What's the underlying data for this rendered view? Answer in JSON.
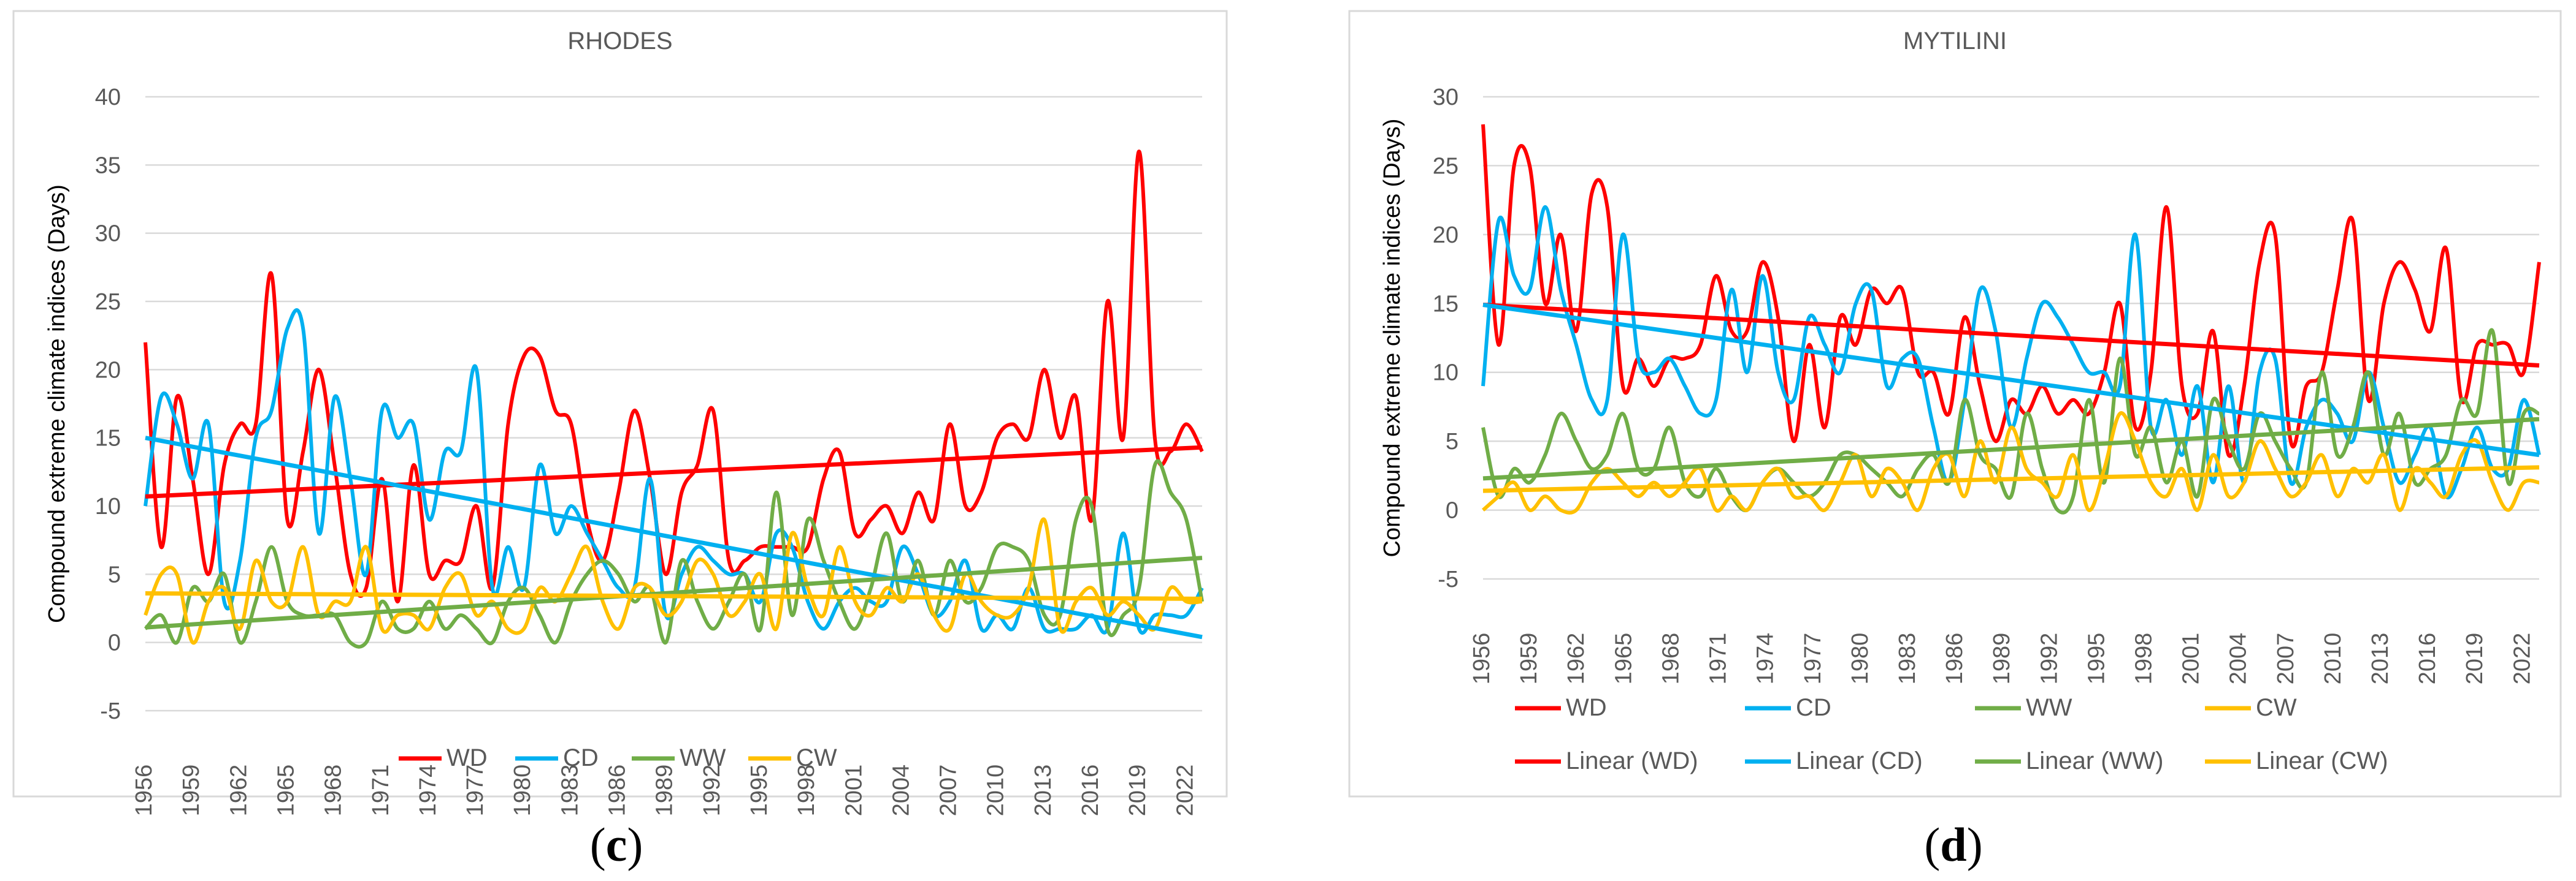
{
  "chart_data": [
    {
      "type": "line",
      "title": "RHODES",
      "caption_prefix": "(",
      "caption": "c",
      "caption_suffix": ")",
      "ylabel": "Compound extreme climate indices (Days)",
      "xlabel": "",
      "ylim": [
        -5,
        40
      ],
      "yticks": [
        -5,
        0,
        5,
        10,
        15,
        20,
        25,
        30,
        35,
        40
      ],
      "xlim": [
        1956,
        2023
      ],
      "xticks": [
        1956,
        1959,
        1962,
        1965,
        1968,
        1971,
        1974,
        1977,
        1980,
        1983,
        1986,
        1989,
        1992,
        1995,
        1998,
        2001,
        2004,
        2007,
        2010,
        2013,
        2016,
        2019,
        2022
      ],
      "series": [
        {
          "name": "WD",
          "color": "#ff0000",
          "values": [
            22,
            7,
            18,
            12,
            5,
            13,
            16,
            16,
            27,
            9,
            14,
            20,
            13,
            5,
            4,
            12,
            3,
            13,
            5,
            6,
            6,
            10,
            4,
            16,
            21,
            21,
            17,
            16,
            9,
            6,
            11,
            17,
            12,
            5,
            11,
            13,
            17,
            6,
            6,
            7,
            7,
            7,
            7,
            12,
            14,
            8,
            9,
            10,
            8,
            11,
            9,
            16,
            10,
            11,
            15,
            16,
            15,
            20,
            15,
            18,
            9,
            25,
            15,
            36,
            15,
            14,
            16,
            14
          ]
        },
        {
          "name": "CD",
          "color": "#00b0f0",
          "values": [
            10,
            18,
            16,
            12,
            16,
            3,
            6,
            15,
            17,
            23,
            23,
            8,
            18,
            12,
            5,
            17,
            15,
            16,
            9,
            14,
            14,
            20,
            4,
            7,
            4,
            13,
            8,
            10,
            8,
            6,
            4,
            4,
            12,
            2,
            5,
            7,
            6,
            5,
            5,
            3,
            8,
            7,
            3,
            1,
            3,
            4,
            3,
            3,
            7,
            5,
            2,
            3,
            6,
            1,
            2,
            1,
            4,
            1,
            1,
            1,
            2,
            1,
            8,
            1,
            2,
            2,
            2,
            4
          ]
        },
        {
          "name": "WW",
          "color": "#70ad47",
          "values": [
            1,
            2,
            0,
            4,
            3,
            5,
            0,
            3,
            7,
            3,
            2,
            2,
            2,
            0,
            0,
            3,
            1,
            1,
            3,
            1,
            2,
            1,
            0,
            3,
            4,
            2,
            0,
            3,
            5,
            6,
            5,
            3,
            4,
            0,
            6,
            3,
            1,
            3,
            5,
            1,
            11,
            2,
            9,
            6,
            3,
            1,
            4,
            8,
            3,
            6,
            2,
            6,
            3,
            4,
            7,
            7,
            6,
            2,
            2,
            9,
            10,
            1,
            2,
            4,
            13,
            11,
            9,
            3
          ]
        },
        {
          "name": "CW",
          "color": "#ffc000",
          "values": [
            2,
            5,
            5,
            0,
            3,
            4,
            1,
            6,
            3,
            3,
            7,
            2,
            3,
            3,
            7,
            1,
            2,
            2,
            1,
            4,
            5,
            2,
            3,
            1,
            1,
            4,
            3,
            5,
            7,
            3,
            1,
            4,
            4,
            2,
            3,
            6,
            5,
            2,
            3,
            5,
            1,
            8,
            4,
            2,
            7,
            3,
            2,
            4,
            3,
            5,
            2,
            1,
            5,
            3,
            2,
            2,
            4,
            9,
            1,
            3,
            4,
            2,
            3,
            2,
            1,
            4,
            3,
            3
          ]
        },
        {
          "name": "Linear (WD)",
          "color": "#ff0000",
          "trend": [
            10.7,
            14.3
          ],
          "show_in_legend": false
        },
        {
          "name": "Linear (CD)",
          "color": "#00b0f0",
          "trend": [
            15.0,
            0.4
          ],
          "show_in_legend": false
        },
        {
          "name": "Linear (WW)",
          "color": "#70ad47",
          "trend": [
            1.1,
            6.2
          ],
          "show_in_legend": false
        },
        {
          "name": "Linear (CW)",
          "color": "#ffc000",
          "trend": [
            3.6,
            3.2
          ],
          "show_in_legend": false
        }
      ],
      "legend": "bottom"
    },
    {
      "type": "line",
      "title": "MYTILINI",
      "caption_prefix": "(",
      "caption": "d",
      "caption_suffix": ")",
      "ylabel": "Compound extreme climate indices (Days)",
      "xlabel": "",
      "ylim": [
        -5,
        30
      ],
      "yticks": [
        -5,
        0,
        5,
        10,
        15,
        20,
        25,
        30
      ],
      "xlim": [
        1956,
        2023
      ],
      "xticks": [
        1956,
        1959,
        1962,
        1965,
        1968,
        1971,
        1974,
        1977,
        1980,
        1983,
        1986,
        1989,
        1992,
        1995,
        1998,
        2001,
        2004,
        2007,
        2010,
        2013,
        2016,
        2019,
        2022
      ],
      "series": [
        {
          "name": "WD",
          "color": "#ff0000",
          "values": [
            28,
            12,
            25,
            25,
            15,
            20,
            13,
            23,
            22,
            9,
            11,
            9,
            11,
            11,
            12,
            17,
            13,
            13,
            18,
            14,
            5,
            12,
            6,
            14,
            12,
            16,
            15,
            16,
            10,
            10,
            7,
            14,
            9,
            5,
            8,
            7,
            9,
            7,
            8,
            7,
            10,
            15,
            6,
            10,
            22,
            9,
            7,
            13,
            4,
            9,
            18,
            20,
            5,
            9,
            10,
            16,
            21,
            8,
            15,
            18,
            16,
            13,
            19,
            8,
            12,
            12,
            12,
            10,
            18
          ]
        },
        {
          "name": "CD",
          "color": "#00b0f0",
          "values": [
            9,
            21,
            17,
            16,
            22,
            16,
            12,
            8,
            8,
            20,
            11,
            10,
            11,
            9,
            7,
            8,
            16,
            10,
            17,
            10,
            8,
            14,
            12,
            10,
            15,
            16,
            9,
            11,
            11,
            6,
            2,
            8,
            16,
            13,
            6,
            11,
            15,
            14,
            12,
            10,
            10,
            9,
            20,
            6,
            8,
            4,
            9,
            2,
            9,
            2,
            10,
            11,
            2,
            6,
            8,
            7,
            5,
            10,
            6,
            2,
            4,
            6,
            1,
            3,
            6,
            3,
            3,
            8,
            4
          ]
        },
        {
          "name": "WW",
          "color": "#70ad47",
          "values": [
            6,
            1,
            3,
            2,
            4,
            7,
            5,
            3,
            4,
            7,
            3,
            3,
            6,
            2,
            1,
            3,
            1,
            0,
            2,
            3,
            2,
            1,
            2,
            4,
            4,
            3,
            2,
            1,
            3,
            4,
            2,
            8,
            4,
            3,
            1,
            7,
            3,
            0,
            1,
            8,
            2,
            11,
            4,
            6,
            2,
            5,
            1,
            8,
            5,
            3,
            7,
            5,
            3,
            2,
            10,
            4,
            6,
            10,
            4,
            7,
            2,
            3,
            4,
            8,
            7,
            13,
            2,
            7,
            7
          ]
        },
        {
          "name": "CW",
          "color": "#ffc000",
          "values": [
            0,
            1,
            2,
            0,
            1,
            0,
            0,
            2,
            3,
            2,
            1,
            2,
            1,
            2,
            3,
            0,
            1,
            0,
            2,
            3,
            1,
            1,
            0,
            2,
            4,
            1,
            3,
            2,
            0,
            3,
            4,
            1,
            5,
            2,
            6,
            3,
            2,
            1,
            4,
            0,
            3,
            7,
            5,
            2,
            1,
            3,
            0,
            4,
            1,
            2,
            5,
            3,
            1,
            2,
            4,
            1,
            3,
            2,
            4,
            0,
            3,
            2,
            1,
            4,
            5,
            2,
            0,
            2,
            2
          ]
        },
        {
          "name": "Linear (WD)",
          "color": "#ff0000",
          "trend": [
            14.9,
            10.5
          ],
          "show_in_legend": true
        },
        {
          "name": "Linear (CD)",
          "color": "#00b0f0",
          "trend": [
            14.9,
            4.0
          ],
          "show_in_legend": true
        },
        {
          "name": "Linear (WW)",
          "color": "#70ad47",
          "trend": [
            2.3,
            6.6
          ],
          "show_in_legend": true
        },
        {
          "name": "Linear (CW)",
          "color": "#ffc000",
          "trend": [
            1.4,
            3.1
          ],
          "show_in_legend": true
        }
      ],
      "legend": "bottom"
    }
  ]
}
